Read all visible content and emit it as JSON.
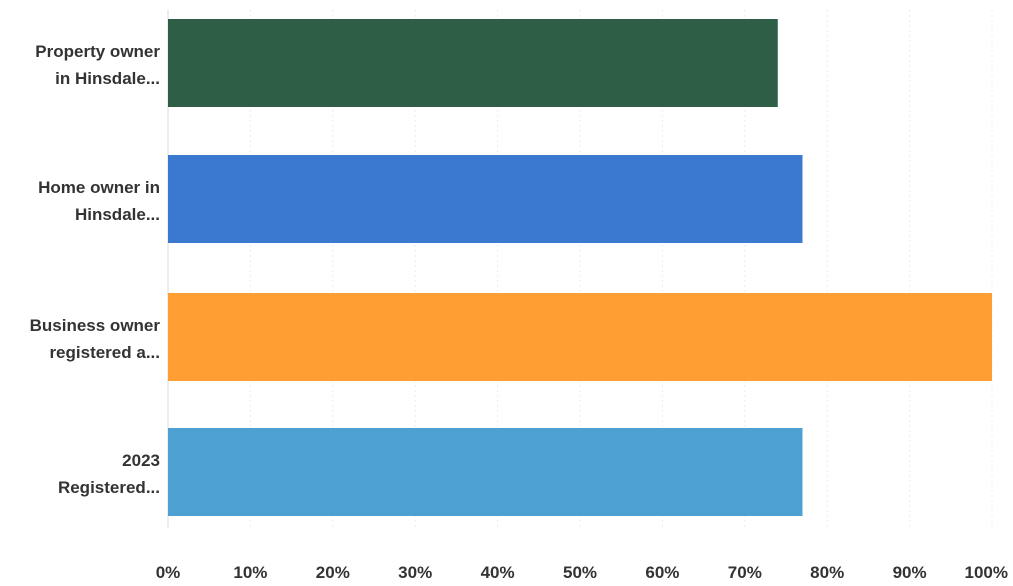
{
  "chart_data": {
    "type": "bar",
    "orientation": "horizontal",
    "categories": [
      [
        "Property owner",
        "in Hinsdale..."
      ],
      [
        "Home owner in",
        "Hinsdale..."
      ],
      [
        "Business owner",
        "registered a..."
      ],
      [
        "2023",
        "Registered..."
      ]
    ],
    "values": [
      74,
      77,
      100,
      77
    ],
    "colors": [
      "#2e5e45",
      "#3b78d0",
      "#ff9f33",
      "#4ca0d2"
    ],
    "xlim": [
      0,
      100
    ],
    "xticks": [
      "0%",
      "10%",
      "20%",
      "30%",
      "40%",
      "50%",
      "60%",
      "70%",
      "80%",
      "90%",
      "100%"
    ],
    "grid": true,
    "title": "",
    "xlabel": "",
    "ylabel": ""
  }
}
